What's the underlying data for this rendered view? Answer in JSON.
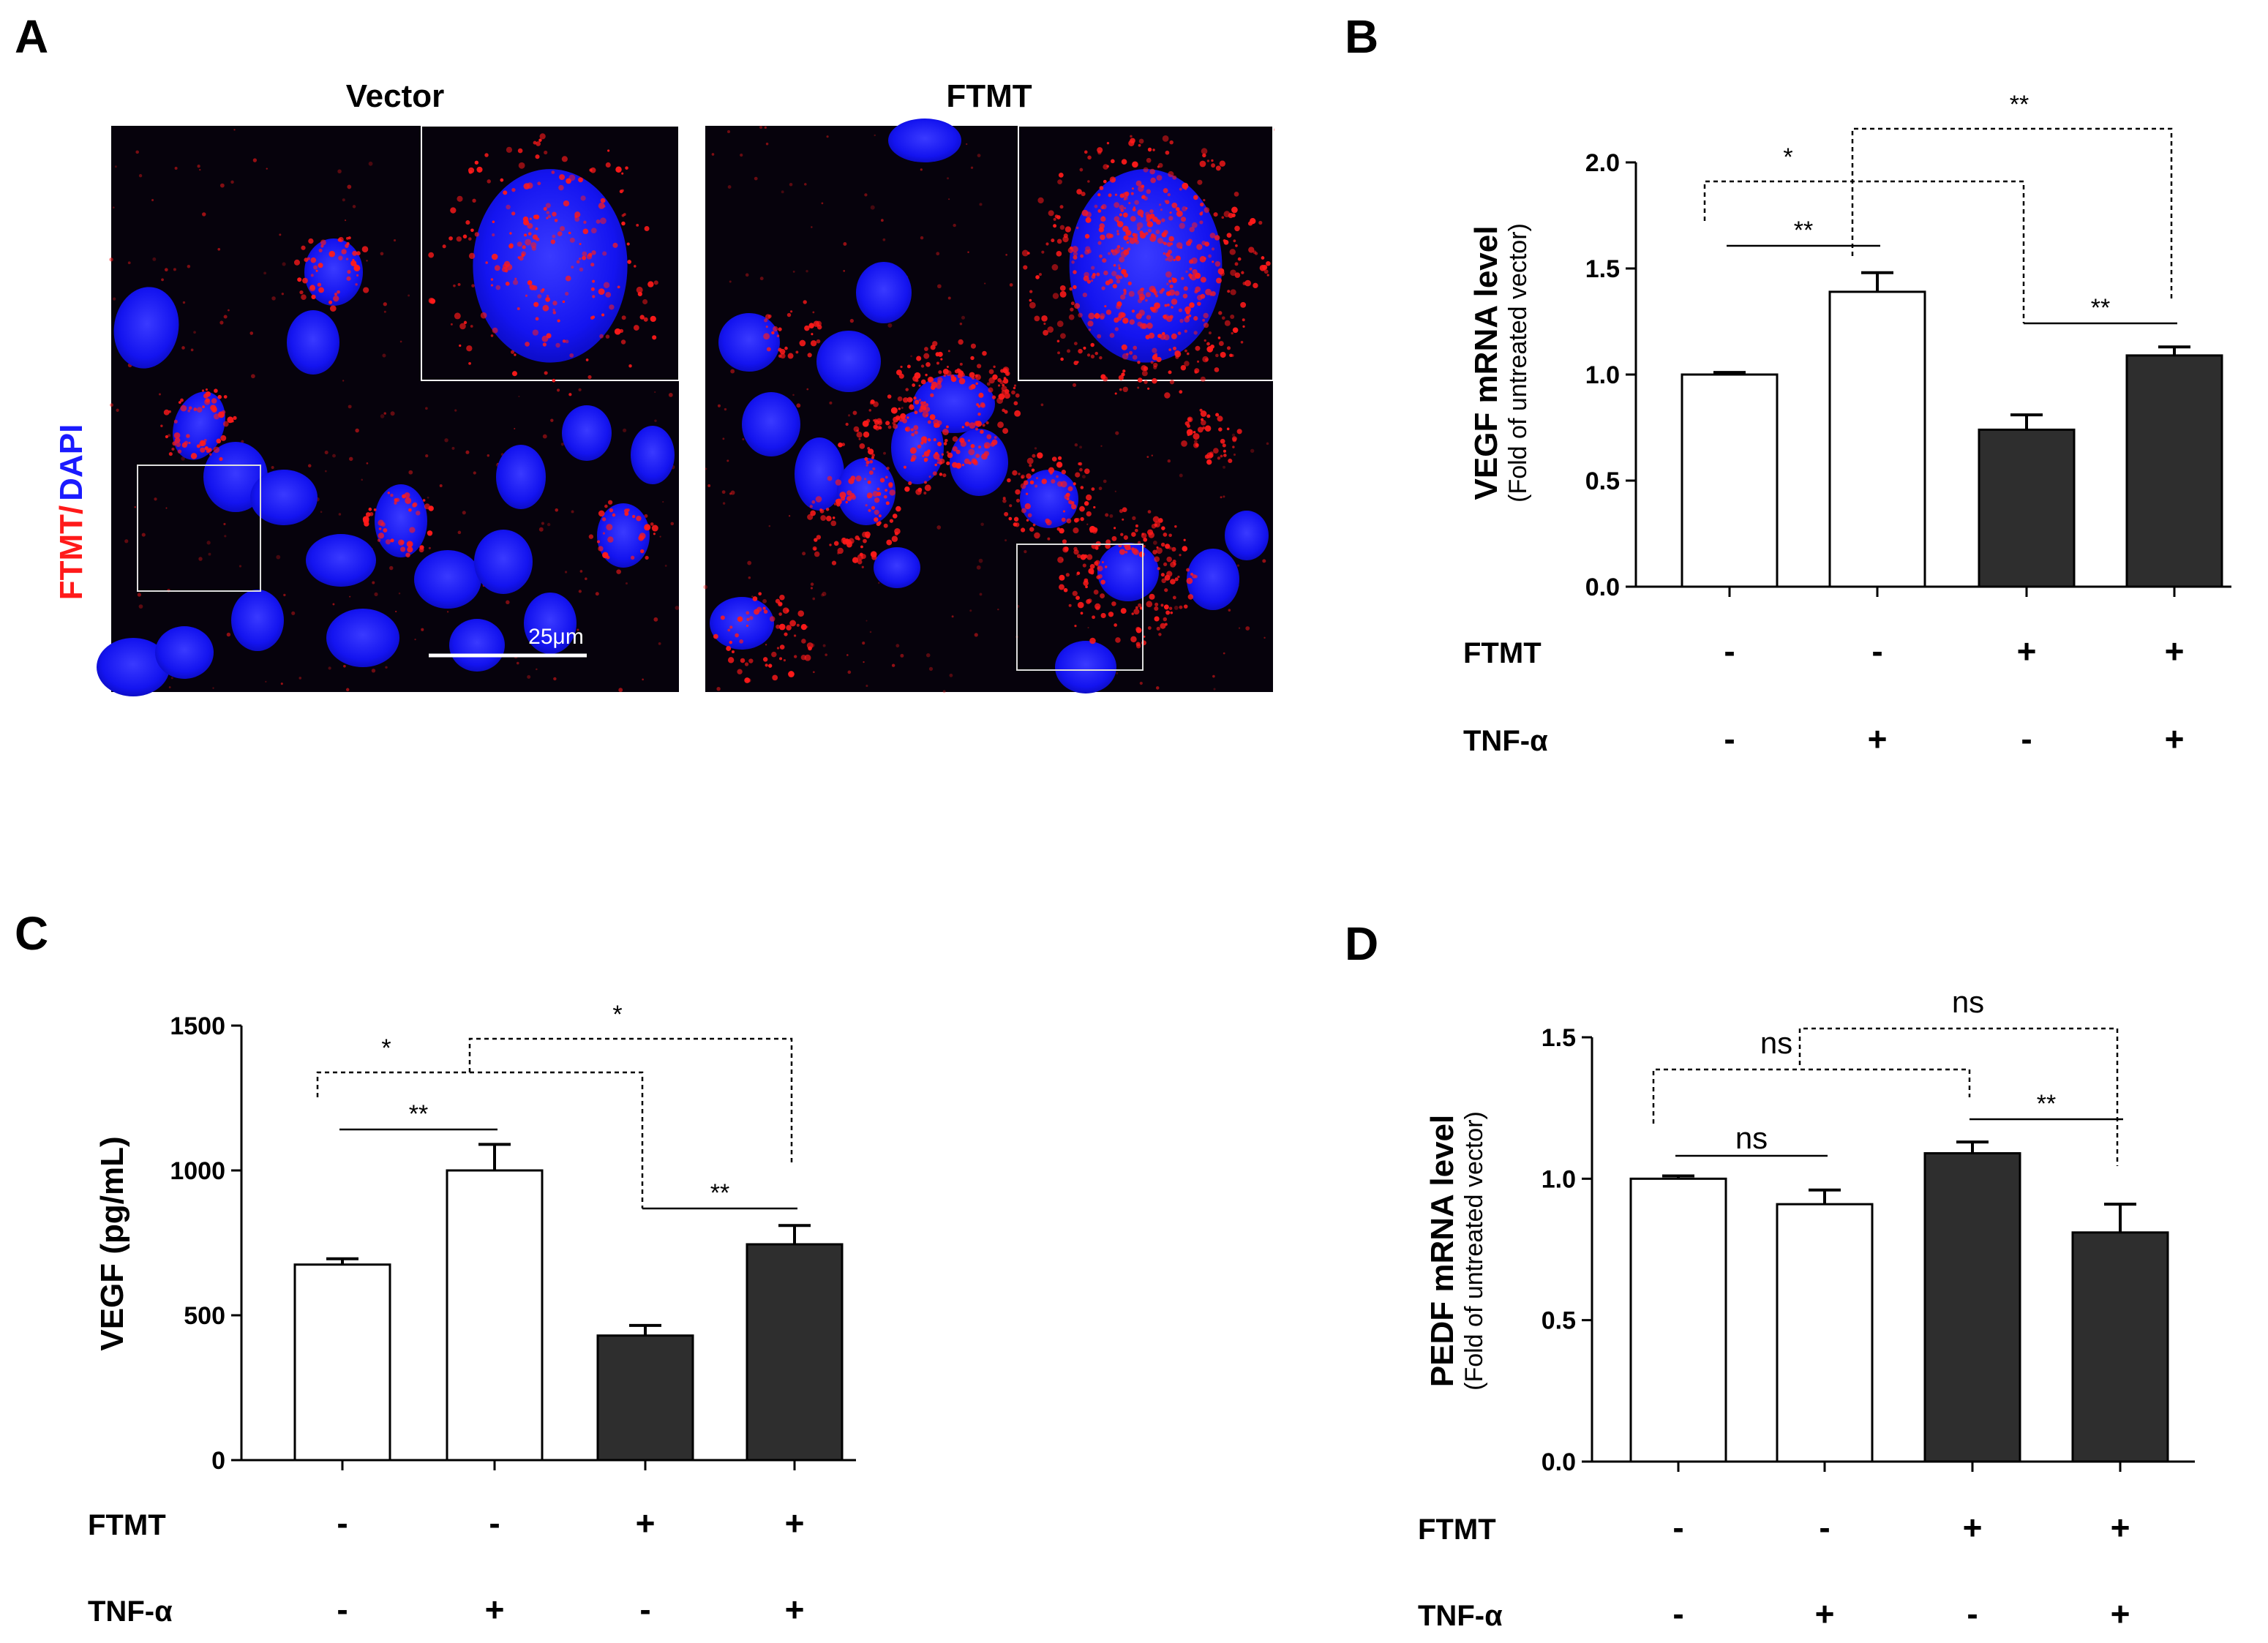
{
  "panel_letters": [
    "A",
    "B",
    "C",
    "D"
  ],
  "micrographs": {
    "left_title": "Vector",
    "right_title": "FTMT",
    "stain_label_red": "FTMT/",
    "stain_label_blue": "DAPI",
    "scale_bar_label": "25μm"
  },
  "colors": {
    "vector_bar_fill": "#ffffff",
    "ftmt_bar_fill": "#2e2e2e",
    "stain_red": "#ff1a1a",
    "stain_blue": "#1a1aff",
    "micrograph_background": "#06020c"
  },
  "chart_data": [
    {
      "panel": "B",
      "type": "bar",
      "ylabel": "VEGF mRNA level",
      "ylabel_sub": "(Fold of untreated vector)",
      "ylim": [
        0,
        2.0
      ],
      "yticks": [
        "0.0",
        "0.5",
        "1.0",
        "1.5",
        "2.0"
      ],
      "conditions": {
        "rows": [
          "FTMT",
          "TNF-α"
        ],
        "FTMT": [
          "-",
          "-",
          "+",
          "+"
        ],
        "TNF-α": [
          "-",
          "+",
          "-",
          "+"
        ]
      },
      "values": [
        1.0,
        1.39,
        0.74,
        1.09
      ],
      "errors": [
        0.01,
        0.09,
        0.07,
        0.04
      ],
      "fills": [
        "white",
        "white",
        "dark",
        "dark"
      ],
      "significance": [
        {
          "bars": [
            0,
            1
          ],
          "label": "**",
          "style": "solid"
        },
        {
          "bars": [
            2,
            3
          ],
          "label": "**",
          "style": "solid"
        },
        {
          "bars": [
            0,
            2
          ],
          "label": "*",
          "style": "dashed"
        },
        {
          "bars": [
            1,
            3
          ],
          "label": "**",
          "style": "dashed"
        }
      ]
    },
    {
      "panel": "C",
      "type": "bar",
      "ylabel": "VEGF (pg/mL)",
      "ylim": [
        0,
        1500
      ],
      "yticks": [
        "0",
        "500",
        "1000",
        "1500"
      ],
      "conditions": {
        "rows": [
          "FTMT",
          "TNF-α"
        ],
        "FTMT": [
          "-",
          "-",
          "+",
          "+"
        ],
        "TNF-α": [
          "-",
          "+",
          "-",
          "+"
        ]
      },
      "values": [
        675,
        1000,
        430,
        745
      ],
      "errors": [
        20,
        90,
        35,
        65
      ],
      "fills": [
        "white",
        "white",
        "dark",
        "dark"
      ],
      "significance": [
        {
          "bars": [
            0,
            1
          ],
          "label": "**",
          "style": "solid"
        },
        {
          "bars": [
            2,
            3
          ],
          "label": "**",
          "style": "solid"
        },
        {
          "bars": [
            0,
            2
          ],
          "label": "*",
          "style": "dashed"
        },
        {
          "bars": [
            1,
            3
          ],
          "label": "*",
          "style": "dashed"
        }
      ]
    },
    {
      "panel": "D",
      "type": "bar",
      "ylabel": "PEDF mRNA level",
      "ylabel_sub": "(Fold of untreated vector)",
      "ylim": [
        0,
        1.5
      ],
      "yticks": [
        "0.0",
        "0.5",
        "1.0",
        "1.5"
      ],
      "conditions": {
        "rows": [
          "FTMT",
          "TNF-α"
        ],
        "FTMT": [
          "-",
          "-",
          "+",
          "+"
        ],
        "TNF-α": [
          "-",
          "+",
          "-",
          "+"
        ]
      },
      "values": [
        1.0,
        0.91,
        1.09,
        0.81
      ],
      "errors": [
        0.01,
        0.05,
        0.04,
        0.1
      ],
      "fills": [
        "white",
        "white",
        "dark",
        "dark"
      ],
      "significance": [
        {
          "bars": [
            0,
            1
          ],
          "label": "ns",
          "style": "solid"
        },
        {
          "bars": [
            2,
            3
          ],
          "label": "**",
          "style": "solid"
        },
        {
          "bars": [
            0,
            2
          ],
          "label": "ns",
          "style": "dashed"
        },
        {
          "bars": [
            1,
            3
          ],
          "label": "ns",
          "style": "dashed"
        }
      ]
    }
  ]
}
